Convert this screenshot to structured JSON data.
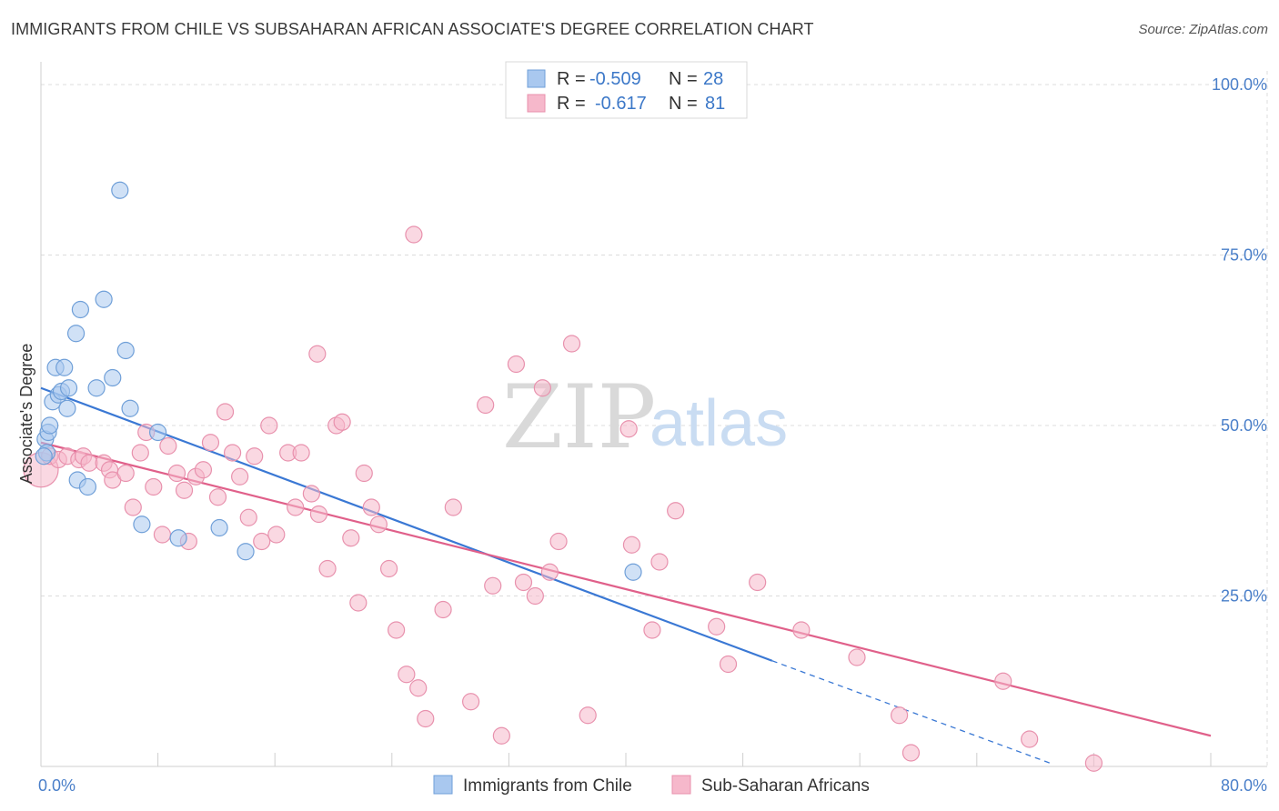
{
  "header": {
    "title": "IMMIGRANTS FROM CHILE VS SUBSAHARAN AFRICAN ASSOCIATE'S DEGREE CORRELATION CHART",
    "source": "Source: ZipAtlas.com"
  },
  "watermark": {
    "zip": "ZIP",
    "atlas": "atlas"
  },
  "legend_box": {
    "rows": [
      {
        "r_label": "R = ",
        "r_value": "-0.509",
        "n_label": "N = ",
        "n_value": "28",
        "color": "#a9c8ef"
      },
      {
        "r_label": "R = ",
        "r_value": "-0.617",
        "n_label": "N = ",
        "n_value": "81",
        "color": "#f6b8cb"
      }
    ]
  },
  "chart_data": {
    "type": "scatter",
    "title": "IMMIGRANTS FROM CHILE VS SUBSAHARAN AFRICAN ASSOCIATE'S DEGREE CORRELATION CHART",
    "xlabel": "",
    "ylabel": "Associate's Degree",
    "xlim": [
      0,
      80
    ],
    "ylim": [
      0,
      102
    ],
    "x_tick_labels": [
      {
        "value": 0,
        "label": "0.0%"
      },
      {
        "value": 80,
        "label": "80.0%"
      }
    ],
    "y_tick_labels": [
      {
        "value": 25,
        "label": "25.0%"
      },
      {
        "value": 50,
        "label": "50.0%"
      },
      {
        "value": 75,
        "label": "75.0%"
      },
      {
        "value": 100,
        "label": "100.0%"
      }
    ],
    "grid": true,
    "legend_position": "bottom",
    "series": [
      {
        "name": "Immigrants from Chile",
        "color": "#a9c8ef",
        "stroke": "#6f9fd8",
        "line_color": "#3a78d4",
        "r": -0.509,
        "n": 28,
        "trend": {
          "x0": 0,
          "y0": 55.5,
          "x1": 50,
          "y1": 15.5,
          "dash_x1": 69,
          "dash_y1": 0.5
        },
        "points": [
          [
            0.3,
            48.0
          ],
          [
            0.4,
            46.0
          ],
          [
            0.5,
            49.0
          ],
          [
            0.6,
            50.0
          ],
          [
            0.8,
            53.5
          ],
          [
            1.0,
            58.5
          ],
          [
            1.2,
            54.5
          ],
          [
            1.4,
            55.0
          ],
          [
            1.6,
            58.5
          ],
          [
            1.8,
            52.5
          ],
          [
            1.9,
            55.5
          ],
          [
            2.4,
            63.5
          ],
          [
            2.5,
            42.0
          ],
          [
            2.7,
            67.0
          ],
          [
            3.2,
            41.0
          ],
          [
            3.8,
            55.5
          ],
          [
            4.3,
            68.5
          ],
          [
            4.9,
            57.0
          ],
          [
            5.4,
            84.5
          ],
          [
            5.8,
            61.0
          ],
          [
            6.1,
            52.5
          ],
          [
            6.9,
            35.5
          ],
          [
            8.0,
            49.0
          ],
          [
            9.4,
            33.5
          ],
          [
            12.2,
            35.0
          ],
          [
            14.0,
            31.5
          ],
          [
            40.5,
            28.5
          ],
          [
            0.2,
            45.5
          ]
        ]
      },
      {
        "name": "Sub-Saharan Africans",
        "color": "#f6b8cb",
        "stroke": "#e891ad",
        "line_color": "#e0608a",
        "r": -0.617,
        "n": 81,
        "trend": {
          "x0": 0,
          "y0": 47.5,
          "x1": 80,
          "y1": 4.5
        },
        "points": [
          [
            0.0,
            43.5
          ],
          [
            0.6,
            45.5
          ],
          [
            1.2,
            45.0
          ],
          [
            1.8,
            45.5
          ],
          [
            2.6,
            45.0
          ],
          [
            2.9,
            45.5
          ],
          [
            3.3,
            44.5
          ],
          [
            4.3,
            44.5
          ],
          [
            4.7,
            43.5
          ],
          [
            4.9,
            42.0
          ],
          [
            5.8,
            43.0
          ],
          [
            6.3,
            38.0
          ],
          [
            6.8,
            46.0
          ],
          [
            7.2,
            49.0
          ],
          [
            7.7,
            41.0
          ],
          [
            8.3,
            34.0
          ],
          [
            8.7,
            47.0
          ],
          [
            9.3,
            43.0
          ],
          [
            9.8,
            40.5
          ],
          [
            10.1,
            33.0
          ],
          [
            10.6,
            42.5
          ],
          [
            11.1,
            43.5
          ],
          [
            11.6,
            47.5
          ],
          [
            12.1,
            39.5
          ],
          [
            12.6,
            52.0
          ],
          [
            13.1,
            46.0
          ],
          [
            13.6,
            42.5
          ],
          [
            14.2,
            36.5
          ],
          [
            14.6,
            45.5
          ],
          [
            15.1,
            33.0
          ],
          [
            15.6,
            50.0
          ],
          [
            16.1,
            34.0
          ],
          [
            16.9,
            46.0
          ],
          [
            17.4,
            38.0
          ],
          [
            17.8,
            46.0
          ],
          [
            18.5,
            40.0
          ],
          [
            19.0,
            37.0
          ],
          [
            19.6,
            29.0
          ],
          [
            20.2,
            50.0
          ],
          [
            20.6,
            50.5
          ],
          [
            21.2,
            33.5
          ],
          [
            21.7,
            24.0
          ],
          [
            22.1,
            43.0
          ],
          [
            22.6,
            38.0
          ],
          [
            23.1,
            35.5
          ],
          [
            23.8,
            29.0
          ],
          [
            24.3,
            20.0
          ],
          [
            25.0,
            13.5
          ],
          [
            25.5,
            78.0
          ],
          [
            25.8,
            11.5
          ],
          [
            26.3,
            7.0
          ],
          [
            27.5,
            23.0
          ],
          [
            28.2,
            38.0
          ],
          [
            29.4,
            9.5
          ],
          [
            30.4,
            53.0
          ],
          [
            30.9,
            26.5
          ],
          [
            31.5,
            4.5
          ],
          [
            32.5,
            59.0
          ],
          [
            33.0,
            27.0
          ],
          [
            33.8,
            25.0
          ],
          [
            34.3,
            55.5
          ],
          [
            34.8,
            28.5
          ],
          [
            35.4,
            33.0
          ],
          [
            37.4,
            7.5
          ],
          [
            40.2,
            49.5
          ],
          [
            40.4,
            32.5
          ],
          [
            41.8,
            20.0
          ],
          [
            42.3,
            30.0
          ],
          [
            43.4,
            37.5
          ],
          [
            46.2,
            20.5
          ],
          [
            47.0,
            15.0
          ],
          [
            49.0,
            27.0
          ],
          [
            52.0,
            20.0
          ],
          [
            55.8,
            16.0
          ],
          [
            58.7,
            7.5
          ],
          [
            59.5,
            2.0
          ],
          [
            65.8,
            12.5
          ],
          [
            67.6,
            4.0
          ],
          [
            72.0,
            0.5
          ],
          [
            36.3,
            62.0
          ],
          [
            18.9,
            60.5
          ]
        ]
      }
    ]
  },
  "bottom_legend": {
    "items": [
      {
        "label": "Immigrants from Chile",
        "color": "#a9c8ef"
      },
      {
        "label": "Sub-Saharan Africans",
        "color": "#f6b8cb"
      }
    ]
  }
}
